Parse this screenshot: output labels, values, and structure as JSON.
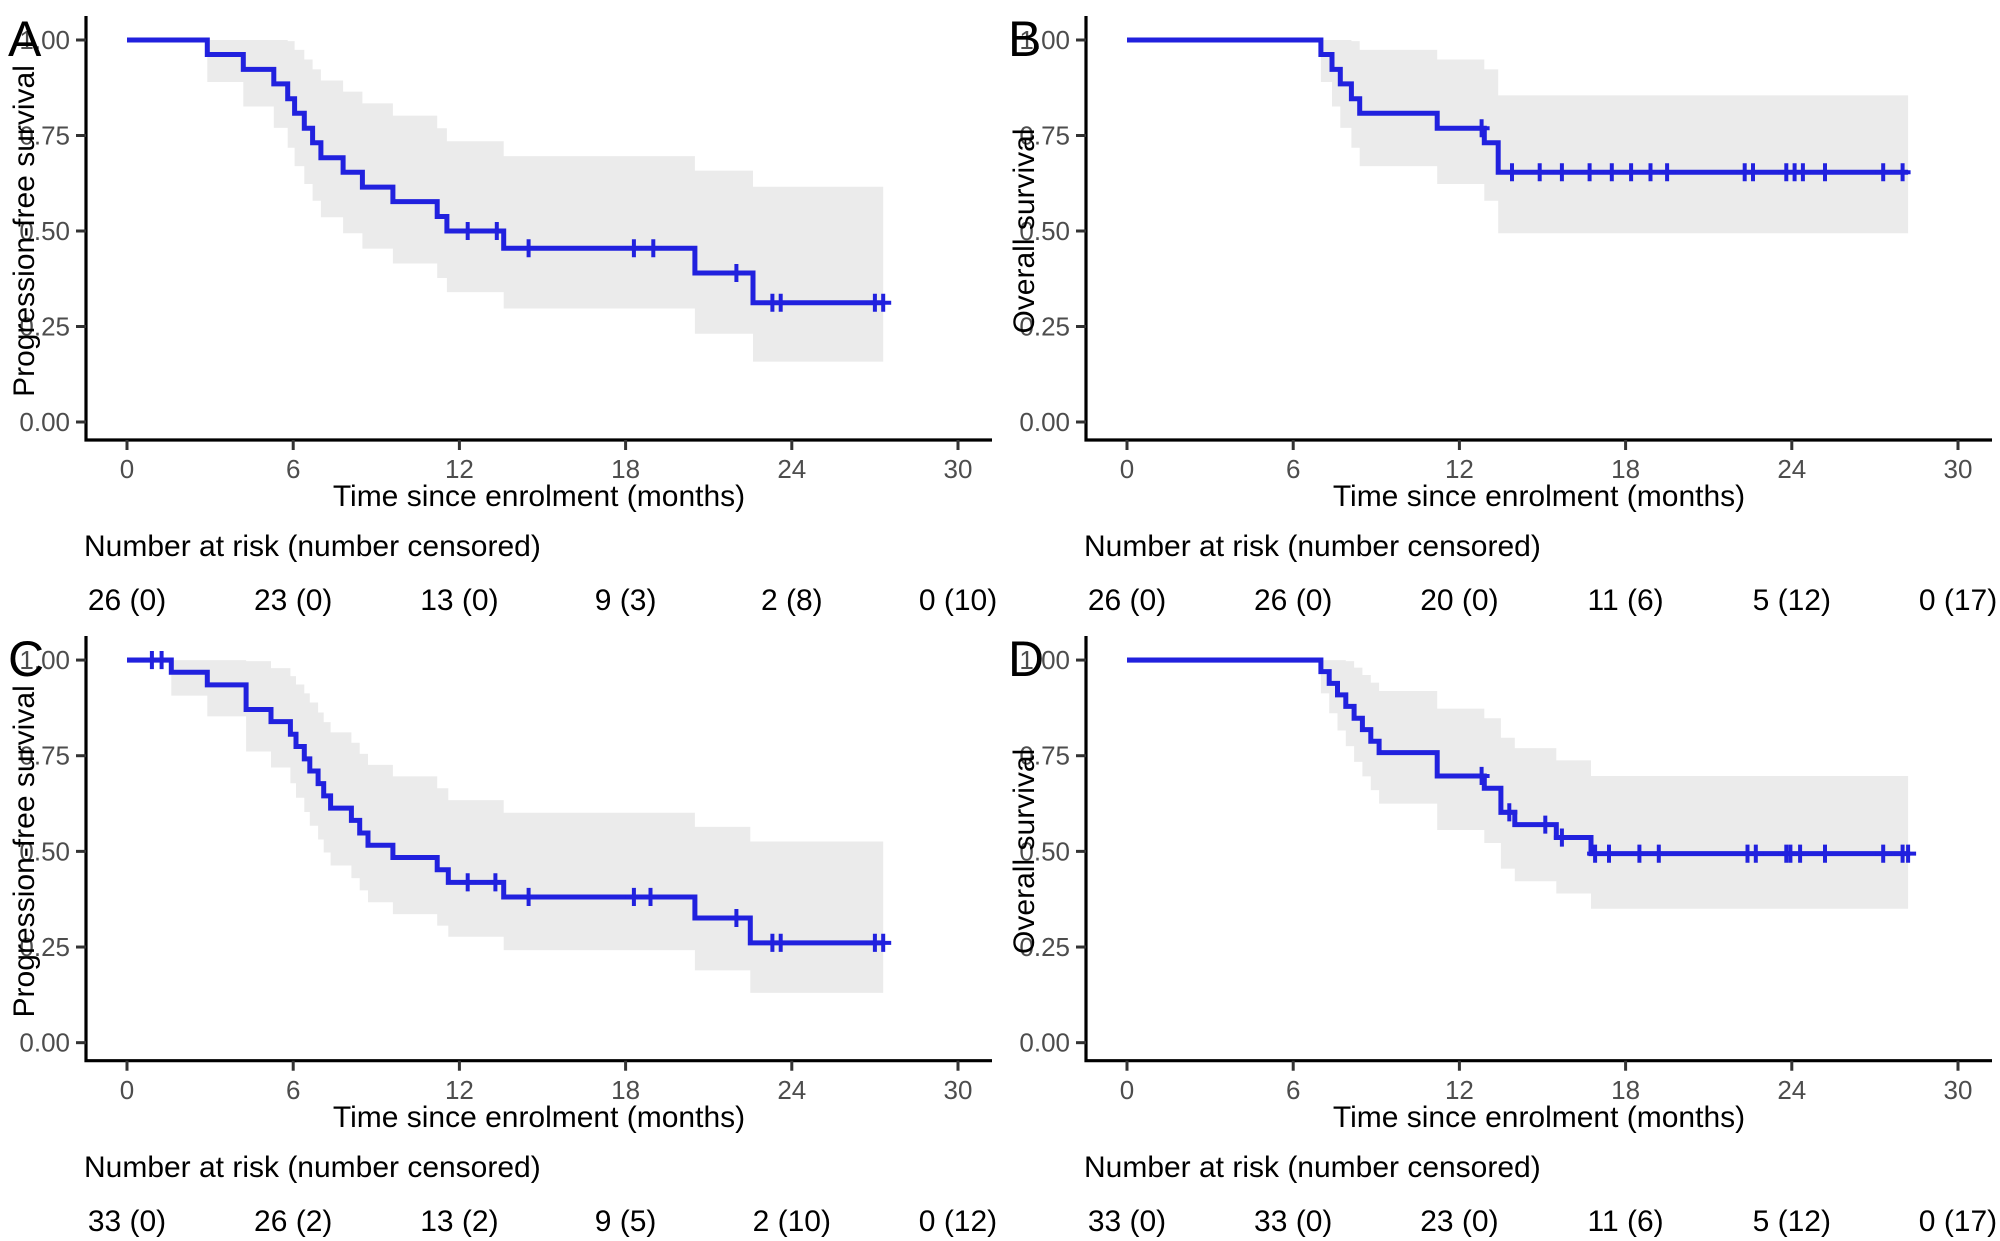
{
  "chart_data": [
    {
      "type": "line",
      "variant": "kaplan_meier_step",
      "panel_label": "A",
      "ylabel": "Progression-free survival",
      "xlabel": "Time since enrolment (months)",
      "x_ticks": [
        0,
        6,
        12,
        18,
        24,
        30
      ],
      "y_ticks": [
        0.0,
        0.25,
        0.5,
        0.75,
        1.0
      ],
      "y_tick_labels": [
        "0.00",
        "0.25",
        "0.50",
        "0.75",
        "1.00"
      ],
      "xlim": [
        0,
        31
      ],
      "ylim": [
        0,
        1
      ],
      "grid": false,
      "legend": "none",
      "line_color": "#2121de",
      "band_color": "#ebebeb",
      "end_time": 27.3,
      "steps": [
        [
          0,
          1.0
        ],
        [
          2.9,
          0.962
        ],
        [
          4.2,
          0.923
        ],
        [
          5.3,
          0.885
        ],
        [
          5.8,
          0.846
        ],
        [
          6.05,
          0.808
        ],
        [
          6.4,
          0.769
        ],
        [
          6.7,
          0.731
        ],
        [
          7.0,
          0.692
        ],
        [
          7.8,
          0.654
        ],
        [
          8.5,
          0.615
        ],
        [
          9.6,
          0.577
        ],
        [
          11.2,
          0.538
        ],
        [
          11.55,
          0.5
        ],
        [
          13.6,
          0.455
        ],
        [
          20.5,
          0.39
        ],
        [
          22.6,
          0.312
        ]
      ],
      "censor_marks": [
        [
          12.3,
          0.5
        ],
        [
          13.35,
          0.5
        ],
        [
          14.5,
          0.455
        ],
        [
          18.3,
          0.455
        ],
        [
          19.0,
          0.455
        ],
        [
          22.0,
          0.39
        ],
        [
          23.3,
          0.312
        ],
        [
          23.6,
          0.312
        ],
        [
          27.0,
          0.312
        ],
        [
          27.3,
          0.312
        ]
      ],
      "conf_band": [
        [
          2.9,
          0.89,
          1.0
        ],
        [
          4.2,
          0.826,
          1.0
        ],
        [
          5.3,
          0.77,
          1.0
        ],
        [
          5.8,
          0.718,
          0.997
        ],
        [
          6.05,
          0.67,
          0.974
        ],
        [
          6.4,
          0.623,
          0.949
        ],
        [
          6.7,
          0.579,
          0.923
        ],
        [
          7.0,
          0.536,
          0.894
        ],
        [
          7.8,
          0.494,
          0.865
        ],
        [
          8.5,
          0.454,
          0.834
        ],
        [
          9.6,
          0.415,
          0.802
        ],
        [
          11.2,
          0.377,
          0.769
        ],
        [
          11.55,
          0.34,
          0.735
        ],
        [
          13.6,
          0.297,
          0.696
        ],
        [
          20.5,
          0.231,
          0.658
        ],
        [
          22.6,
          0.158,
          0.616
        ]
      ],
      "risk_table": {
        "header": "Number at risk (number censored)",
        "times": [
          0,
          6,
          12,
          18,
          24,
          30
        ],
        "values": [
          "26 (0)",
          "23 (0)",
          "13 (0)",
          "9 (3)",
          "2 (8)",
          "0 (10)"
        ]
      }
    },
    {
      "type": "line",
      "variant": "kaplan_meier_step",
      "panel_label": "B",
      "ylabel": "Overall survival",
      "xlabel": "Time since enrolment (months)",
      "x_ticks": [
        0,
        6,
        12,
        18,
        24,
        30
      ],
      "y_ticks": [
        0.0,
        0.25,
        0.5,
        0.75,
        1.0
      ],
      "y_tick_labels": [
        "0.00",
        "0.25",
        "0.50",
        "0.75",
        "1.00"
      ],
      "xlim": [
        0,
        31
      ],
      "ylim": [
        0,
        1
      ],
      "grid": false,
      "legend": "none",
      "line_color": "#2121de",
      "band_color": "#ebebeb",
      "end_time": 28.2,
      "steps": [
        [
          0,
          1.0
        ],
        [
          7.0,
          0.962
        ],
        [
          7.4,
          0.923
        ],
        [
          7.7,
          0.885
        ],
        [
          8.1,
          0.846
        ],
        [
          8.4,
          0.808
        ],
        [
          11.2,
          0.769
        ],
        [
          12.9,
          0.731
        ],
        [
          13.4,
          0.654
        ]
      ],
      "censor_marks": [
        [
          12.8,
          0.769
        ],
        [
          13.9,
          0.654
        ],
        [
          14.9,
          0.654
        ],
        [
          15.7,
          0.654
        ],
        [
          16.7,
          0.654
        ],
        [
          17.5,
          0.654
        ],
        [
          18.2,
          0.654
        ],
        [
          18.9,
          0.654
        ],
        [
          19.5,
          0.654
        ],
        [
          22.3,
          0.654
        ],
        [
          22.6,
          0.654
        ],
        [
          23.8,
          0.654
        ],
        [
          24.1,
          0.654
        ],
        [
          24.4,
          0.654
        ],
        [
          25.2,
          0.654
        ],
        [
          27.3,
          0.654
        ],
        [
          28.0,
          0.654
        ]
      ],
      "conf_band": [
        [
          7.0,
          0.89,
          1.0
        ],
        [
          7.4,
          0.826,
          1.0
        ],
        [
          7.7,
          0.77,
          1.0
        ],
        [
          8.1,
          0.718,
          0.997
        ],
        [
          8.4,
          0.67,
          0.974
        ],
        [
          11.2,
          0.623,
          0.949
        ],
        [
          12.9,
          0.579,
          0.923
        ],
        [
          13.4,
          0.494,
          0.855
        ]
      ],
      "risk_table": {
        "header": "Number at risk (number censored)",
        "times": [
          0,
          6,
          12,
          18,
          24,
          30
        ],
        "values": [
          "26 (0)",
          "26 (0)",
          "20 (0)",
          "11 (6)",
          "5 (12)",
          "0 (17)"
        ]
      }
    },
    {
      "type": "line",
      "variant": "kaplan_meier_step",
      "panel_label": "C",
      "ylabel": "Progression-free survival",
      "xlabel": "Time since enrolment (months)",
      "x_ticks": [
        0,
        6,
        12,
        18,
        24,
        30
      ],
      "y_ticks": [
        0.0,
        0.25,
        0.5,
        0.75,
        1.0
      ],
      "y_tick_labels": [
        "0.00",
        "0.25",
        "0.50",
        "0.75",
        "1.00"
      ],
      "xlim": [
        0,
        31
      ],
      "ylim": [
        0,
        1
      ],
      "grid": false,
      "legend": "none",
      "line_color": "#2121de",
      "band_color": "#ebebeb",
      "end_time": 27.3,
      "steps": [
        [
          0,
          1.0
        ],
        [
          1.6,
          0.968
        ],
        [
          2.9,
          0.935
        ],
        [
          4.3,
          0.871
        ],
        [
          5.2,
          0.839
        ],
        [
          5.9,
          0.806
        ],
        [
          6.1,
          0.774
        ],
        [
          6.4,
          0.742
        ],
        [
          6.6,
          0.71
        ],
        [
          6.9,
          0.677
        ],
        [
          7.1,
          0.645
        ],
        [
          7.35,
          0.613
        ],
        [
          8.1,
          0.581
        ],
        [
          8.4,
          0.548
        ],
        [
          8.7,
          0.516
        ],
        [
          9.6,
          0.484
        ],
        [
          11.2,
          0.452
        ],
        [
          11.6,
          0.419
        ],
        [
          13.6,
          0.381
        ],
        [
          20.5,
          0.326
        ],
        [
          22.5,
          0.261
        ]
      ],
      "censor_marks": [
        [
          0.9,
          1.0
        ],
        [
          1.25,
          1.0
        ],
        [
          12.3,
          0.419
        ],
        [
          13.3,
          0.419
        ],
        [
          14.5,
          0.381
        ],
        [
          18.3,
          0.381
        ],
        [
          18.9,
          0.381
        ],
        [
          22.0,
          0.326
        ],
        [
          23.3,
          0.261
        ],
        [
          23.6,
          0.261
        ],
        [
          27.0,
          0.261
        ],
        [
          27.3,
          0.261
        ]
      ],
      "conf_band": [
        [
          1.6,
          0.907,
          1.0
        ],
        [
          2.9,
          0.853,
          1.0
        ],
        [
          4.3,
          0.761,
          0.997
        ],
        [
          5.2,
          0.719,
          0.979
        ],
        [
          5.9,
          0.678,
          0.958
        ],
        [
          6.1,
          0.64,
          0.936
        ],
        [
          6.4,
          0.603,
          0.913
        ],
        [
          6.6,
          0.567,
          0.889
        ],
        [
          6.9,
          0.531,
          0.863
        ],
        [
          7.1,
          0.497,
          0.838
        ],
        [
          7.35,
          0.463,
          0.811
        ],
        [
          8.1,
          0.43,
          0.784
        ],
        [
          8.4,
          0.398,
          0.755
        ],
        [
          8.7,
          0.367,
          0.726
        ],
        [
          9.6,
          0.336,
          0.696
        ],
        [
          11.2,
          0.306,
          0.665
        ],
        [
          11.6,
          0.277,
          0.634
        ],
        [
          13.6,
          0.242,
          0.601
        ],
        [
          20.5,
          0.189,
          0.564
        ],
        [
          22.5,
          0.13,
          0.526
        ]
      ],
      "risk_table": {
        "header": "Number at risk (number censored)",
        "times": [
          0,
          6,
          12,
          18,
          24,
          30
        ],
        "values": [
          "33 (0)",
          "26 (2)",
          "13 (2)",
          "9 (5)",
          "2 (10)",
          "0 (12)"
        ]
      }
    },
    {
      "type": "line",
      "variant": "kaplan_meier_step",
      "panel_label": "D",
      "ylabel": "Overall survival",
      "xlabel": "Time since enrolment (months)",
      "x_ticks": [
        0,
        6,
        12,
        18,
        24,
        30
      ],
      "y_ticks": [
        0.0,
        0.25,
        0.5,
        0.75,
        1.0
      ],
      "y_tick_labels": [
        "0.00",
        "0.25",
        "0.50",
        "0.75",
        "1.00"
      ],
      "xlim": [
        0,
        31
      ],
      "ylim": [
        0,
        1
      ],
      "grid": false,
      "legend": "none",
      "line_color": "#2121de",
      "band_color": "#ebebeb",
      "end_time": 28.2,
      "steps": [
        [
          0,
          1.0
        ],
        [
          7.0,
          0.97
        ],
        [
          7.3,
          0.939
        ],
        [
          7.6,
          0.909
        ],
        [
          7.9,
          0.879
        ],
        [
          8.2,
          0.848
        ],
        [
          8.5,
          0.818
        ],
        [
          8.8,
          0.788
        ],
        [
          9.1,
          0.758
        ],
        [
          11.2,
          0.697
        ],
        [
          12.9,
          0.665
        ],
        [
          13.5,
          0.602
        ],
        [
          14.0,
          0.57
        ],
        [
          15.5,
          0.536
        ],
        [
          16.75,
          0.494
        ]
      ],
      "censor_marks": [
        [
          12.8,
          0.697
        ],
        [
          13.8,
          0.602
        ],
        [
          15.1,
          0.57
        ],
        [
          15.7,
          0.536
        ],
        [
          16.9,
          0.494
        ],
        [
          17.4,
          0.494
        ],
        [
          18.5,
          0.494
        ],
        [
          19.2,
          0.494
        ],
        [
          22.4,
          0.494
        ],
        [
          22.7,
          0.494
        ],
        [
          23.8,
          0.494
        ],
        [
          23.95,
          0.494
        ],
        [
          24.3,
          0.494
        ],
        [
          25.2,
          0.494
        ],
        [
          27.3,
          0.494
        ],
        [
          28.0,
          0.494
        ],
        [
          28.2,
          0.494
        ]
      ],
      "conf_band": [
        [
          7.0,
          0.913,
          1.0
        ],
        [
          7.3,
          0.861,
          1.0
        ],
        [
          7.6,
          0.816,
          1.0
        ],
        [
          7.9,
          0.775,
          0.997
        ],
        [
          8.2,
          0.734,
          0.98
        ],
        [
          8.5,
          0.696,
          0.961
        ],
        [
          8.8,
          0.66,
          0.941
        ],
        [
          9.1,
          0.625,
          0.919
        ],
        [
          11.2,
          0.556,
          0.873
        ],
        [
          12.9,
          0.522,
          0.848
        ],
        [
          13.5,
          0.455,
          0.797
        ],
        [
          14.0,
          0.422,
          0.77
        ],
        [
          15.5,
          0.39,
          0.738
        ],
        [
          16.75,
          0.35,
          0.697
        ]
      ],
      "risk_table": {
        "header": "Number at risk (number censored)",
        "times": [
          0,
          6,
          12,
          18,
          24,
          30
        ],
        "values": [
          "33 (0)",
          "33 (0)",
          "23 (0)",
          "11 (6)",
          "5 (12)",
          "0 (17)"
        ]
      }
    }
  ]
}
